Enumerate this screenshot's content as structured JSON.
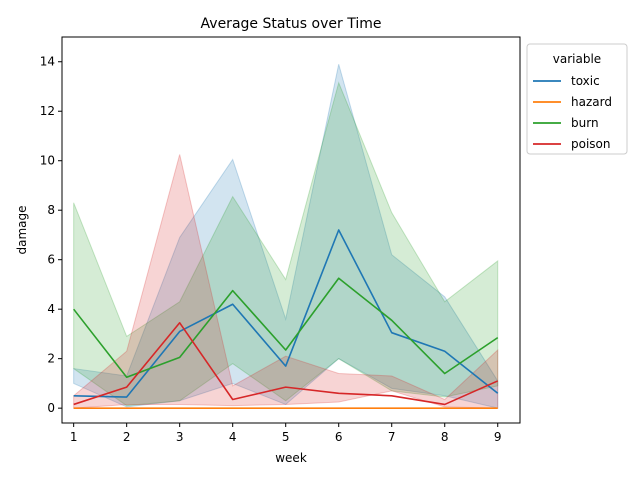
{
  "chart_data": {
    "type": "line",
    "title": "Average Status over Time",
    "xlabel": "week",
    "ylabel": "damage",
    "x": [
      1,
      2,
      3,
      4,
      5,
      6,
      7,
      8,
      9
    ],
    "xlim": [
      0.78,
      9.42
    ],
    "ylim": [
      -0.6,
      15.0
    ],
    "yticks": [
      0,
      2,
      4,
      6,
      8,
      10,
      12,
      14
    ],
    "grid": false,
    "legend": {
      "title": "variable",
      "placement": "upper-right-outside"
    },
    "series": [
      {
        "name": "toxic",
        "color": "#1f77b4",
        "values": [
          0.5,
          0.45,
          3.1,
          4.2,
          1.7,
          7.2,
          3.05,
          2.3,
          0.6
        ],
        "lower": [
          1.0,
          0.05,
          0.3,
          1.0,
          0.15,
          2.0,
          0.8,
          0.5,
          0.0
        ],
        "upper": [
          1.6,
          1.3,
          6.9,
          10.05,
          3.6,
          13.9,
          6.2,
          4.5,
          1.1
        ]
      },
      {
        "name": "hazard",
        "color": "#ff7f0e",
        "values": [
          0.0,
          0.0,
          0.0,
          0.0,
          0.0,
          0.0,
          0.0,
          0.0,
          0.0
        ],
        "lower": [
          0.0,
          0.0,
          0.0,
          0.0,
          0.0,
          0.0,
          0.0,
          0.0,
          0.0
        ],
        "upper": [
          0.0,
          0.0,
          0.0,
          0.0,
          0.0,
          0.0,
          0.0,
          0.0,
          0.0
        ]
      },
      {
        "name": "burn",
        "color": "#2ca02c",
        "values": [
          4.0,
          1.25,
          2.05,
          4.75,
          2.35,
          5.25,
          3.55,
          1.4,
          2.85
        ],
        "lower": [
          1.6,
          0.1,
          0.3,
          1.8,
          0.3,
          2.0,
          0.7,
          0.45,
          0.9
        ],
        "upper": [
          8.3,
          2.9,
          4.3,
          8.55,
          5.2,
          13.15,
          7.9,
          4.3,
          5.95
        ]
      },
      {
        "name": "poison",
        "color": "#d62728",
        "values": [
          0.15,
          0.85,
          3.45,
          0.35,
          0.85,
          0.6,
          0.5,
          0.15,
          1.1
        ],
        "lower": [
          0.0,
          0.15,
          0.15,
          0.1,
          0.15,
          0.25,
          0.7,
          0.05,
          0.0
        ],
        "upper": [
          0.5,
          2.3,
          10.25,
          0.9,
          2.1,
          1.4,
          1.3,
          0.35,
          2.35
        ]
      }
    ]
  }
}
